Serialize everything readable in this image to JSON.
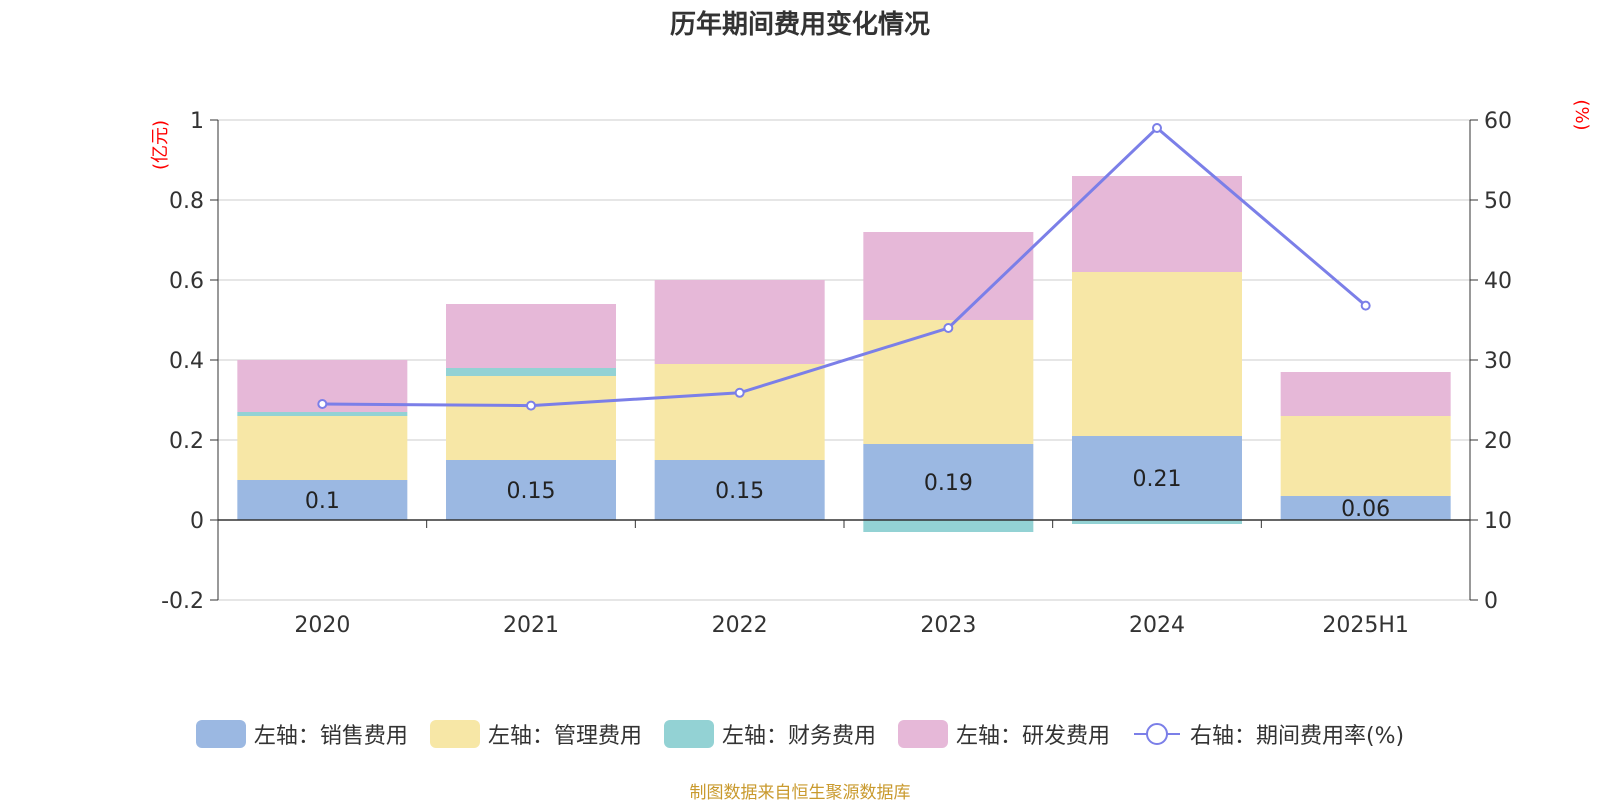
{
  "title": "历年期间费用变化情况",
  "source_note": "制图数据来自恒生聚源数据库",
  "colors": {
    "sales": "#9bb8e2",
    "admin": "#f7e7a6",
    "finance": "#93d2d4",
    "rd": "#e6b8d8",
    "rate_line": "#7b7fe8",
    "grid": "#cccccc",
    "axis_unit": "#ff0000"
  },
  "chart_data": {
    "type": "bar",
    "stacked": true,
    "categories": [
      "2020",
      "2021",
      "2022",
      "2023",
      "2024",
      "2025H1"
    ],
    "series": [
      {
        "name": "左轴：销售费用",
        "key": "sales",
        "axis": "left",
        "values": [
          0.1,
          0.15,
          0.15,
          0.19,
          0.21,
          0.06
        ]
      },
      {
        "name": "左轴：管理费用",
        "key": "admin",
        "axis": "left",
        "values": [
          0.16,
          0.21,
          0.24,
          0.31,
          0.41,
          0.2
        ]
      },
      {
        "name": "左轴：财务费用",
        "key": "finance",
        "axis": "left",
        "values": [
          0.01,
          0.02,
          0.0,
          -0.03,
          -0.01,
          0.0
        ]
      },
      {
        "name": "左轴：研发费用",
        "key": "rd",
        "axis": "left",
        "values": [
          0.13,
          0.16,
          0.21,
          0.22,
          0.24,
          0.11
        ]
      },
      {
        "name": "右轴：期间费用率(%)",
        "key": "rate_line",
        "axis": "right",
        "type": "line",
        "values": [
          24.5,
          24.3,
          25.9,
          34.0,
          59.0,
          36.8
        ]
      }
    ],
    "data_labels": [
      "0.1",
      "0.15",
      "0.15",
      "0.19",
      "0.21",
      "0.06"
    ],
    "left_axis": {
      "unit": "(亿元)",
      "min": -0.2,
      "max": 1,
      "ticks": [
        "-0.2",
        "0",
        "0.2",
        "0.4",
        "0.6",
        "0.8",
        "1"
      ]
    },
    "right_axis": {
      "unit": "(%)",
      "min": 0,
      "max": 60,
      "ticks": [
        "0",
        "10",
        "20",
        "30",
        "40",
        "50",
        "60"
      ]
    },
    "grid": true,
    "legend_position": "bottom"
  }
}
